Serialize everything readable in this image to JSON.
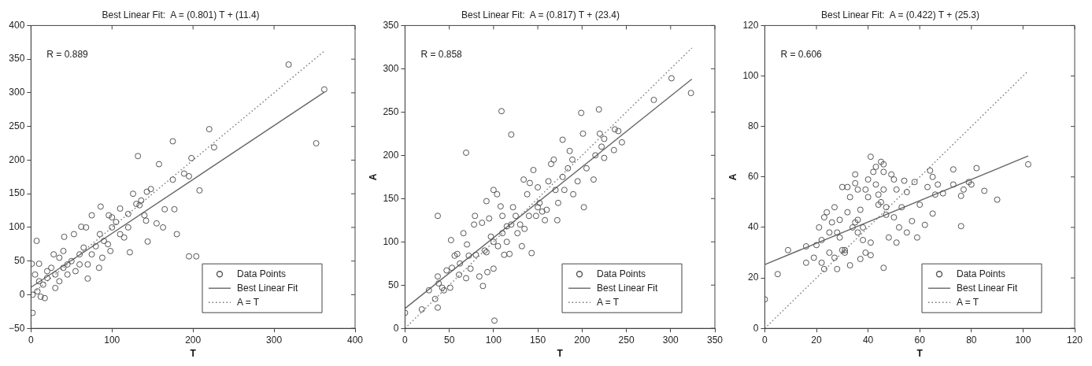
{
  "chart_data": [
    {
      "type": "scatter",
      "title": "Best Linear Fit:  A = (0.801) T + (11.4)",
      "xlabel": "T",
      "xlim": [
        0,
        400
      ],
      "xticks": [
        0,
        100,
        200,
        300,
        400
      ],
      "ylim": [
        -50,
        400
      ],
      "yticks": [
        -50,
        0,
        50,
        100,
        150,
        200,
        250,
        300,
        350,
        400
      ],
      "grid": false,
      "legend": "bottom right",
      "annotations": [
        "R = 0.889"
      ],
      "series": [
        {
          "name": "Data Points",
          "type": "scatter",
          "marker": "circle",
          "color": "#555555",
          "x": [
            318,
            362,
            352,
            220,
            175,
            226,
            132,
            158,
            198,
            189,
            195,
            175,
            208,
            126,
            143,
            148,
            136,
            134,
            140,
            142,
            155,
            163,
            165,
            177,
            180,
            144,
            195,
            204,
            122,
            120,
            110,
            96,
            86,
            75,
            62,
            68,
            41,
            53,
            2,
            7,
            10,
            1,
            70,
            84,
            12,
            17,
            2,
            110,
            100,
            90,
            80,
            60,
            50,
            40,
            30,
            20,
            15,
            25,
            35,
            45,
            55,
            65,
            75,
            85,
            95,
            105,
            115,
            70,
            30,
            10,
            5,
            20,
            40,
            60,
            8,
            28,
            35,
            45,
            88,
            98,
            120,
            130,
            100
          ],
          "values": [
            342,
            305,
            225,
            246,
            228,
            219,
            206,
            194,
            203,
            180,
            176,
            171,
            155,
            150,
            153,
            157,
            140,
            133,
            118,
            110,
            106,
            100,
            127,
            127,
            90,
            79,
            57,
            57,
            63,
            100,
            128,
            118,
            131,
            118,
            101,
            100,
            86,
            90,
            -27,
            80,
            46,
            46,
            24,
            40,
            -3,
            -5,
            0,
            90,
            100,
            80,
            72,
            60,
            50,
            40,
            30,
            25,
            15,
            40,
            55,
            45,
            35,
            70,
            60,
            90,
            75,
            108,
            85,
            45,
            10,
            20,
            30,
            35,
            65,
            45,
            5,
            60,
            20,
            30,
            55,
            65,
            120,
            135,
            115
          ]
        },
        {
          "name": "Best Linear Fit",
          "type": "line",
          "marker": "none",
          "line_style": "solid",
          "color": "#666666",
          "x": [
            0,
            362
          ],
          "values": [
            11,
            301
          ]
        },
        {
          "name": "A = T",
          "type": "line",
          "marker": "none",
          "line_style": "dotted",
          "color": "#777777",
          "x": [
            0,
            362
          ],
          "values": [
            0,
            362
          ]
        }
      ]
    },
    {
      "type": "scatter",
      "title": "Best Linear Fit:  A = (0.817) T + (23.4)",
      "xlabel": "T",
      "ylabel": "A",
      "xlim": [
        0,
        350
      ],
      "xticks": [
        0,
        50,
        100,
        150,
        200,
        250,
        300,
        350
      ],
      "ylim": [
        0,
        350
      ],
      "yticks": [
        0,
        50,
        100,
        150,
        200,
        250,
        300,
        350
      ],
      "grid": false,
      "legend": "bottom right",
      "annotations": [
        "R = 0.858"
      ],
      "series": [
        {
          "name": "Data Points",
          "type": "scatter",
          "marker": "circle",
          "color": "#555555",
          "x": [
            0,
            19,
            27,
            34,
            37,
            37,
            37,
            38,
            42,
            44,
            47,
            51,
            52,
            53,
            56,
            59,
            61,
            66,
            69,
            69,
            70,
            72,
            74,
            78,
            79,
            84,
            87,
            88,
            92,
            93,
            95,
            100,
            100,
            101,
            104,
            108,
            109,
            110,
            112,
            115,
            118,
            120,
            122,
            127,
            132,
            134,
            138,
            141,
            143,
            145,
            148,
            150,
            152,
            158,
            160,
            162,
            165,
            168,
            172,
            173,
            178,
            178,
            184,
            186,
            189,
            190,
            195,
            199,
            201,
            202,
            205,
            213,
            215,
            219,
            220,
            222,
            225,
            225,
            236,
            237,
            241,
            245,
            281,
            301,
            323,
            100,
            110,
            120,
            90,
            80,
            105,
            130,
            140,
            150,
            115,
            125,
            135,
            155,
            170,
            180,
            97,
            92,
            62
          ],
          "values": [
            18,
            22,
            44,
            34,
            24,
            130,
            60,
            52,
            47,
            44,
            67,
            47,
            102,
            70,
            84,
            86,
            62,
            110,
            58,
            203,
            97,
            84,
            69,
            120,
            130,
            60,
            122,
            49,
            147,
            65,
            127,
            69,
            160,
            9,
            155,
            141,
            251,
            130,
            85,
            100,
            86,
            224,
            140,
            110,
            95,
            172,
            155,
            168,
            87,
            183,
            130,
            163,
            145,
            125,
            137,
            170,
            190,
            195,
            125,
            145,
            218,
            175,
            185,
            205,
            195,
            155,
            170,
            249,
            225,
            140,
            185,
            172,
            200,
            253,
            225,
            210,
            197,
            219,
            206,
            230,
            228,
            215,
            264,
            289,
            272,
            100,
            110,
            120,
            90,
            85,
            95,
            120,
            130,
            140,
            118,
            130,
            115,
            135,
            160,
            160,
            106,
            88,
            75
          ]
        },
        {
          "name": "Best Linear Fit",
          "type": "line",
          "marker": "none",
          "line_style": "solid",
          "color": "#666666",
          "x": [
            0,
            324
          ],
          "values": [
            23,
            288
          ]
        },
        {
          "name": "A = T",
          "type": "line",
          "marker": "none",
          "line_style": "dotted",
          "color": "#777777",
          "x": [
            0,
            324
          ],
          "values": [
            0,
            324
          ]
        }
      ]
    },
    {
      "type": "scatter",
      "title": "Best Linear Fit:  A = (0.422) T + (25.3)",
      "xlabel": "T",
      "ylabel": "A",
      "xlim": [
        0,
        120
      ],
      "xticks": [
        0,
        20,
        40,
        60,
        80,
        100,
        120
      ],
      "ylim": [
        0,
        120
      ],
      "yticks": [
        0,
        20,
        40,
        60,
        80,
        100,
        120
      ],
      "grid": false,
      "legend": "bottom right",
      "annotations": [
        "R = 0.606"
      ],
      "series": [
        {
          "name": "Data Points",
          "type": "scatter",
          "marker": "circle",
          "color": "#555555",
          "x": [
            0,
            5,
            9,
            16,
            16,
            19,
            20,
            21,
            22,
            22,
            23,
            23,
            24,
            25,
            26,
            27,
            27,
            28,
            28,
            29,
            30,
            30,
            31,
            32,
            32,
            33,
            33,
            34,
            35,
            35,
            36,
            36,
            37,
            37,
            38,
            39,
            39,
            40,
            40,
            41,
            41,
            41,
            42,
            43,
            43,
            44,
            45,
            45,
            46,
            46,
            46,
            46,
            47,
            48,
            49,
            50,
            50,
            51,
            51,
            52,
            53,
            54,
            55,
            55,
            57,
            58,
            59,
            60,
            62,
            63,
            64,
            65,
            65,
            66,
            67,
            69,
            73,
            73,
            76,
            76,
            77,
            79,
            80,
            82,
            85,
            90,
            102,
            35,
            38,
            31,
            44,
            47,
            29,
            25,
            36
          ],
          "values": [
            11.5,
            21.5,
            31,
            32.5,
            26,
            28,
            33,
            40,
            26,
            35,
            23.5,
            44,
            46,
            38,
            42,
            48,
            28,
            23.5,
            38,
            43,
            56,
            31,
            30,
            56,
            46,
            25,
            52,
            40,
            61,
            57.5,
            55,
            43,
            27.5,
            47,
            40,
            55,
            30,
            59,
            52,
            68,
            34,
            29,
            62,
            64,
            57,
            53,
            66,
            50,
            65,
            62,
            24,
            55,
            48,
            36,
            61,
            59,
            44,
            34,
            55,
            40,
            48,
            58.5,
            54,
            38,
            42.5,
            58,
            36,
            49,
            41,
            56,
            62.5,
            45.5,
            60,
            53,
            57,
            53.5,
            63,
            57,
            40.5,
            52.5,
            55,
            58,
            57,
            63.5,
            54.5,
            51,
            65,
            42,
            35,
            31,
            49,
            45,
            36,
            30,
            38
          ]
        },
        {
          "name": "Best Linear Fit",
          "type": "line",
          "marker": "none",
          "line_style": "solid",
          "color": "#666666",
          "x": [
            0,
            102
          ],
          "values": [
            25.3,
            68.3
          ]
        },
        {
          "name": "A = T",
          "type": "line",
          "marker": "none",
          "line_style": "dotted",
          "color": "#777777",
          "x": [
            0,
            102
          ],
          "values": [
            0,
            102
          ]
        }
      ]
    }
  ]
}
